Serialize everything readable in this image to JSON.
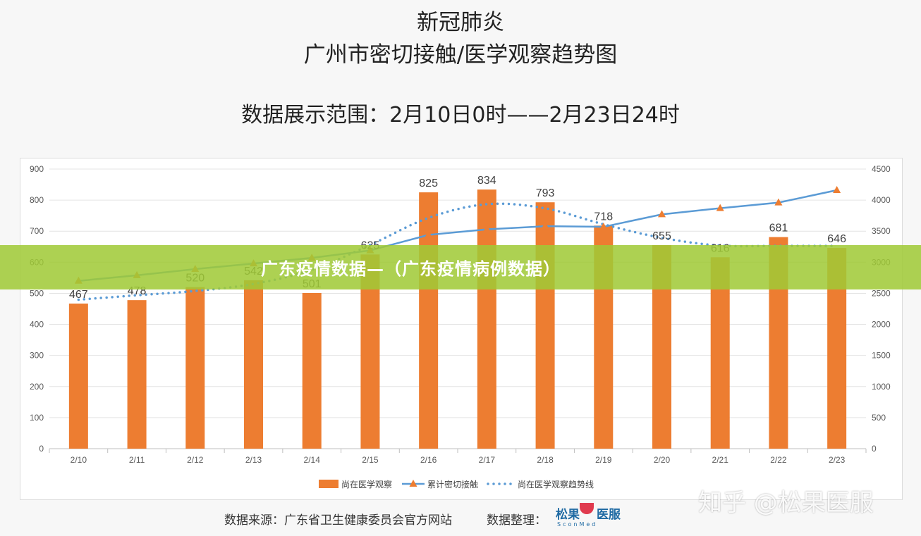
{
  "titles": {
    "line1": "新冠肺炎",
    "line2": "广州市密切接触/医学观察趋势图",
    "range": "数据展示范围：2月10日0时——2月23日24时"
  },
  "banner": {
    "text": "广东疫情数据—（广东疫情病例数据）"
  },
  "footer": {
    "source": "数据来源：广东省卫生健康委员会官方网站",
    "organizer": "数据整理：",
    "logo_text": "松果",
    "logo_text2": "医服",
    "logo_sub": "SconMed"
  },
  "watermark": "知乎 @松果医服",
  "colors": {
    "bar": "#ed7d31",
    "line": "#5b9bd5",
    "trend": "#5b9bd5",
    "banner": "#a0c935"
  },
  "chart_data": {
    "type": "bar",
    "categories": [
      "2/10",
      "2/11",
      "2/12",
      "2/13",
      "2/14",
      "2/15",
      "2/16",
      "2/17",
      "2/18",
      "2/19",
      "2/20",
      "2/21",
      "2/22",
      "2/23"
    ],
    "series": [
      {
        "name": "尚在医学观察",
        "type": "bar",
        "axis": "left",
        "values": [
          467,
          478,
          520,
          542,
          501,
          625,
          825,
          834,
          793,
          718,
          655,
          616,
          681,
          646
        ]
      },
      {
        "name": "累计密切接触",
        "type": "line",
        "axis": "right",
        "values": [
          2700,
          2790,
          2890,
          2980,
          3070,
          3190,
          3440,
          3530,
          3580,
          3570,
          3770,
          3870,
          3960,
          4160
        ]
      },
      {
        "name": "尚在医学观察趋势线",
        "type": "dotted-line",
        "axis": "left"
      }
    ],
    "y_left": {
      "min": 0,
      "max": 900,
      "ticks": [
        0,
        100,
        200,
        300,
        400,
        500,
        600,
        700,
        800,
        900
      ]
    },
    "y_right": {
      "min": 0,
      "max": 4500,
      "ticks": [
        0,
        500,
        1000,
        1500,
        2000,
        2500,
        3000,
        3500,
        4000,
        4500
      ]
    },
    "legend_position": "bottom",
    "grid": true
  }
}
